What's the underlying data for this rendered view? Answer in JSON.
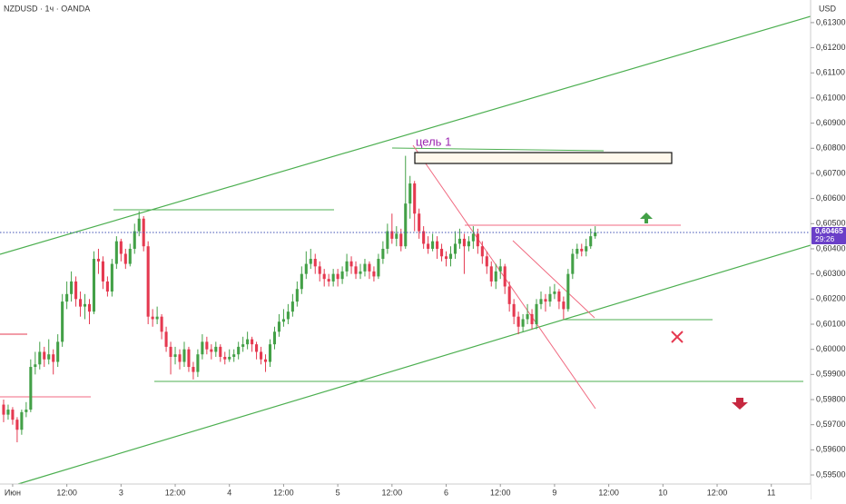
{
  "chart_data": {
    "type": "candlestick",
    "title": "NZDUSD · 1ч · OANDA",
    "currency": "USD",
    "annotation": "цель 1",
    "up_color": "#43a047",
    "down_color": "#e53950",
    "grid": false,
    "last_price": {
      "value": 0.60465,
      "label": "0,60465"
    },
    "countdown": "29:26",
    "xlim": [
      -0.8,
      178.7
    ],
    "xticks": [
      {
        "value": 2,
        "label": "Июн"
      },
      {
        "value": 14,
        "label": "12:00"
      },
      {
        "value": 26,
        "label": "3"
      },
      {
        "value": 38,
        "label": "12:00"
      },
      {
        "value": 50,
        "label": "4"
      },
      {
        "value": 62,
        "label": "12:00"
      },
      {
        "value": 74,
        "label": "5"
      },
      {
        "value": 86,
        "label": "12:00"
      },
      {
        "value": 98,
        "label": "6"
      },
      {
        "value": 110,
        "label": "12:00"
      },
      {
        "value": 122,
        "label": "9"
      },
      {
        "value": 134,
        "label": "12:00"
      },
      {
        "value": 146,
        "label": "10"
      },
      {
        "value": 158,
        "label": "12:00"
      },
      {
        "value": 170,
        "label": "11"
      }
    ],
    "ylim": [
      0.59464,
      0.6139
    ],
    "yticks": [
      {
        "value": 0.595,
        "label": "0,59500"
      },
      {
        "value": 0.596,
        "label": "0,59600"
      },
      {
        "value": 0.597,
        "label": "0,59700"
      },
      {
        "value": 0.598,
        "label": "0,59800"
      },
      {
        "value": 0.599,
        "label": "0,59900"
      },
      {
        "value": 0.6,
        "label": "0,60000"
      },
      {
        "value": 0.601,
        "label": "0,60100"
      },
      {
        "value": 0.602,
        "label": "0,60200"
      },
      {
        "value": 0.603,
        "label": "0,60300"
      },
      {
        "value": 0.604,
        "label": "0,60400"
      },
      {
        "value": 0.605,
        "label": "0,60500"
      },
      {
        "value": 0.606,
        "label": "0,60600"
      },
      {
        "value": 0.607,
        "label": "0,60700"
      },
      {
        "value": 0.608,
        "label": "0,60800"
      },
      {
        "value": 0.609,
        "label": "0,60900"
      },
      {
        "value": 0.61,
        "label": "0,61000"
      },
      {
        "value": 0.611,
        "label": "0,61100"
      },
      {
        "value": 0.612,
        "label": "0,61200"
      },
      {
        "value": 0.613,
        "label": "0,61300"
      }
    ],
    "x": [
      0,
      1,
      2,
      3,
      4,
      5,
      6,
      7,
      8,
      9,
      10,
      11,
      12,
      13,
      14,
      15,
      16,
      17,
      18,
      19,
      20,
      21,
      22,
      23,
      24,
      25,
      26,
      27,
      28,
      29,
      30,
      31,
      32,
      33,
      34,
      35,
      36,
      37,
      38,
      39,
      40,
      41,
      42,
      43,
      44,
      45,
      46,
      47,
      48,
      49,
      50,
      51,
      52,
      53,
      54,
      55,
      56,
      57,
      58,
      59,
      60,
      61,
      62,
      63,
      64,
      65,
      66,
      67,
      68,
      69,
      70,
      71,
      72,
      73,
      74,
      75,
      76,
      77,
      78,
      79,
      80,
      81,
      82,
      83,
      84,
      85,
      86,
      87,
      88,
      89,
      90,
      91,
      92,
      93,
      94,
      95,
      96,
      97,
      98,
      99,
      100,
      101,
      102,
      103,
      104,
      105,
      106,
      107,
      108,
      109,
      110,
      111,
      112,
      113,
      114,
      115,
      116,
      117,
      118,
      119,
      120,
      121,
      122,
      123,
      124,
      125,
      126,
      127,
      128,
      129,
      130,
      131
    ],
    "ohlc": [
      [
        0.5978,
        0.598,
        0.5971,
        0.5974
      ],
      [
        0.5974,
        0.5978,
        0.5972,
        0.5976
      ],
      [
        0.5976,
        0.5977,
        0.597,
        0.5972
      ],
      [
        0.5972,
        0.5973,
        0.5963,
        0.5968
      ],
      [
        0.5968,
        0.5976,
        0.5966,
        0.5975
      ],
      [
        0.5975,
        0.5979,
        0.5973,
        0.5976
      ],
      [
        0.5976,
        0.5996,
        0.5975,
        0.5993
      ],
      [
        0.5993,
        0.5999,
        0.599,
        0.5994
      ],
      [
        0.5994,
        0.6003,
        0.5992,
        0.5999
      ],
      [
        0.5999,
        0.6001,
        0.5993,
        0.5996
      ],
      [
        0.5996,
        0.6004,
        0.5994,
        0.5998
      ],
      [
        0.5998,
        0.6,
        0.599,
        0.5995
      ],
      [
        0.5995,
        0.6006,
        0.5993,
        0.6003
      ],
      [
        0.6003,
        0.6022,
        0.6001,
        0.6019
      ],
      [
        0.6019,
        0.6027,
        0.6016,
        0.6022
      ],
      [
        0.6022,
        0.6031,
        0.6019,
        0.6027
      ],
      [
        0.6027,
        0.6029,
        0.6017,
        0.602
      ],
      [
        0.602,
        0.6023,
        0.6013,
        0.6017
      ],
      [
        0.6017,
        0.6022,
        0.6012,
        0.6018
      ],
      [
        0.6018,
        0.602,
        0.601,
        0.6015
      ],
      [
        0.6015,
        0.6039,
        0.6014,
        0.6036
      ],
      [
        0.6036,
        0.604,
        0.603,
        0.6035
      ],
      [
        0.6035,
        0.6037,
        0.6024,
        0.6027
      ],
      [
        0.6027,
        0.6029,
        0.6021,
        0.6023
      ],
      [
        0.6023,
        0.6036,
        0.6021,
        0.6034
      ],
      [
        0.6034,
        0.6045,
        0.6032,
        0.6043
      ],
      [
        0.6043,
        0.6044,
        0.6035,
        0.6038
      ],
      [
        0.6038,
        0.604,
        0.6032,
        0.6034
      ],
      [
        0.6034,
        0.6042,
        0.6033,
        0.604
      ],
      [
        0.604,
        0.605,
        0.6038,
        0.6047
      ],
      [
        0.6047,
        0.6055,
        0.6045,
        0.6052
      ],
      [
        0.6052,
        0.6053,
        0.6039,
        0.6041
      ],
      [
        0.6041,
        0.6043,
        0.601,
        0.6013
      ],
      [
        0.6013,
        0.6016,
        0.6009,
        0.6012
      ],
      [
        0.6012,
        0.6017,
        0.601,
        0.6013
      ],
      [
        0.6013,
        0.6014,
        0.6004,
        0.6007
      ],
      [
        0.6007,
        0.6009,
        0.5999,
        0.6001
      ],
      [
        0.6001,
        0.6003,
        0.599,
        0.5997
      ],
      [
        0.5997,
        0.6001,
        0.5994,
        0.5998
      ],
      [
        0.5998,
        0.6,
        0.5992,
        0.5995
      ],
      [
        0.5995,
        0.6003,
        0.5993,
        0.6
      ],
      [
        0.6,
        0.6001,
        0.5991,
        0.5993
      ],
      [
        0.5993,
        0.5995,
        0.5988,
        0.5991
      ],
      [
        0.5991,
        0.6,
        0.5989,
        0.5998
      ],
      [
        0.5998,
        0.6006,
        0.5996,
        0.6003
      ],
      [
        0.6003,
        0.6005,
        0.5998,
        0.6
      ],
      [
        0.6,
        0.6002,
        0.5996,
        0.5999
      ],
      [
        0.5999,
        0.6003,
        0.5997,
        0.6001
      ],
      [
        0.6001,
        0.6002,
        0.5995,
        0.5997
      ],
      [
        0.5997,
        0.5999,
        0.5994,
        0.5996
      ],
      [
        0.5996,
        0.6,
        0.5995,
        0.5997
      ],
      [
        0.5997,
        0.6,
        0.5995,
        0.5998
      ],
      [
        0.5998,
        0.6003,
        0.5996,
        0.6001
      ],
      [
        0.6001,
        0.6005,
        0.5999,
        0.6002
      ],
      [
        0.6002,
        0.6007,
        0.6,
        0.6004
      ],
      [
        0.6004,
        0.6005,
        0.5999,
        0.6002
      ],
      [
        0.6002,
        0.6003,
        0.5996,
        0.5999
      ],
      [
        0.5999,
        0.6001,
        0.5994,
        0.5996
      ],
      [
        0.5996,
        0.5998,
        0.5991,
        0.5995
      ],
      [
        0.5995,
        0.6004,
        0.5993,
        0.6002
      ],
      [
        0.6002,
        0.6009,
        0.6,
        0.6007
      ],
      [
        0.6007,
        0.6014,
        0.6005,
        0.6011
      ],
      [
        0.6011,
        0.6016,
        0.6009,
        0.6012
      ],
      [
        0.6012,
        0.6018,
        0.601,
        0.6015
      ],
      [
        0.6015,
        0.6022,
        0.6013,
        0.6019
      ],
      [
        0.6019,
        0.6027,
        0.6017,
        0.6024
      ],
      [
        0.6024,
        0.6033,
        0.6022,
        0.603
      ],
      [
        0.603,
        0.6039,
        0.6028,
        0.6034
      ],
      [
        0.6034,
        0.604,
        0.6032,
        0.6036
      ],
      [
        0.6036,
        0.6038,
        0.603,
        0.6033
      ],
      [
        0.6033,
        0.6035,
        0.6027,
        0.603
      ],
      [
        0.603,
        0.6032,
        0.6025,
        0.6028
      ],
      [
        0.6028,
        0.603,
        0.6025,
        0.6027
      ],
      [
        0.6027,
        0.6032,
        0.6025,
        0.603
      ],
      [
        0.603,
        0.6032,
        0.6025,
        0.6028
      ],
      [
        0.6028,
        0.6033,
        0.6026,
        0.6031
      ],
      [
        0.6031,
        0.6038,
        0.6029,
        0.6035
      ],
      [
        0.6035,
        0.6037,
        0.603,
        0.6033
      ],
      [
        0.6033,
        0.6035,
        0.6028,
        0.603
      ],
      [
        0.603,
        0.6034,
        0.6028,
        0.6031
      ],
      [
        0.6031,
        0.6036,
        0.6029,
        0.6034
      ],
      [
        0.6034,
        0.6035,
        0.6028,
        0.6031
      ],
      [
        0.6031,
        0.6033,
        0.6027,
        0.6029
      ],
      [
        0.6029,
        0.6038,
        0.6028,
        0.6036
      ],
      [
        0.6036,
        0.6043,
        0.6034,
        0.604
      ],
      [
        0.604,
        0.605,
        0.6038,
        0.6047
      ],
      [
        0.6047,
        0.6054,
        0.6042,
        0.6044
      ],
      [
        0.6044,
        0.6049,
        0.6041,
        0.6046
      ],
      [
        0.6046,
        0.6048,
        0.6039,
        0.6041
      ],
      [
        0.6041,
        0.6077,
        0.604,
        0.6058
      ],
      [
        0.6058,
        0.6069,
        0.6052,
        0.6066
      ],
      [
        0.6066,
        0.6067,
        0.6047,
        0.6054
      ],
      [
        0.6054,
        0.6056,
        0.6044,
        0.6047
      ],
      [
        0.6047,
        0.6049,
        0.604,
        0.6042
      ],
      [
        0.6042,
        0.6045,
        0.6038,
        0.604
      ],
      [
        0.604,
        0.6046,
        0.6039,
        0.6043
      ],
      [
        0.6043,
        0.6045,
        0.6036,
        0.604
      ],
      [
        0.604,
        0.6042,
        0.6035,
        0.6037
      ],
      [
        0.6037,
        0.6039,
        0.6033,
        0.6036
      ],
      [
        0.6036,
        0.6041,
        0.6033,
        0.6038
      ],
      [
        0.6038,
        0.6047,
        0.6036,
        0.6042
      ],
      [
        0.6042,
        0.6048,
        0.604,
        0.6044
      ],
      [
        0.6044,
        0.6046,
        0.603,
        0.6041
      ],
      [
        0.6041,
        0.6045,
        0.6039,
        0.6043
      ],
      [
        0.6043,
        0.6049,
        0.604,
        0.6046
      ],
      [
        0.6046,
        0.6048,
        0.6038,
        0.6041
      ],
      [
        0.6041,
        0.6043,
        0.6034,
        0.6037
      ],
      [
        0.6037,
        0.6039,
        0.603,
        0.6033
      ],
      [
        0.6033,
        0.6035,
        0.6025,
        0.6027
      ],
      [
        0.6027,
        0.6034,
        0.6024,
        0.6031
      ],
      [
        0.6031,
        0.6036,
        0.6028,
        0.6033
      ],
      [
        0.6033,
        0.6034,
        0.6022,
        0.6025
      ],
      [
        0.6025,
        0.6027,
        0.6015,
        0.6018
      ],
      [
        0.6018,
        0.602,
        0.601,
        0.6013
      ],
      [
        0.6013,
        0.6015,
        0.6006,
        0.6009
      ],
      [
        0.6009,
        0.6014,
        0.6007,
        0.6012
      ],
      [
        0.6012,
        0.6018,
        0.601,
        0.6014
      ],
      [
        0.6014,
        0.6016,
        0.6008,
        0.601
      ],
      [
        0.601,
        0.602,
        0.6008,
        0.6018
      ],
      [
        0.6018,
        0.6023,
        0.6016,
        0.602
      ],
      [
        0.602,
        0.6022,
        0.6015,
        0.6019
      ],
      [
        0.6019,
        0.6025,
        0.6017,
        0.6022
      ],
      [
        0.6022,
        0.6026,
        0.602,
        0.6023
      ],
      [
        0.6023,
        0.6024,
        0.6016,
        0.6019
      ],
      [
        0.6019,
        0.6021,
        0.6012,
        0.6016
      ],
      [
        0.6016,
        0.6032,
        0.6015,
        0.603
      ],
      [
        0.603,
        0.604,
        0.6028,
        0.6038
      ],
      [
        0.6038,
        0.6042,
        0.6036,
        0.604
      ],
      [
        0.604,
        0.6042,
        0.6037,
        0.6039
      ],
      [
        0.6039,
        0.6044,
        0.6037,
        0.6041
      ],
      [
        0.6041,
        0.6048,
        0.604,
        0.6045
      ],
      [
        0.6045,
        0.6049,
        0.6044,
        0.60465
      ]
    ]
  }
}
